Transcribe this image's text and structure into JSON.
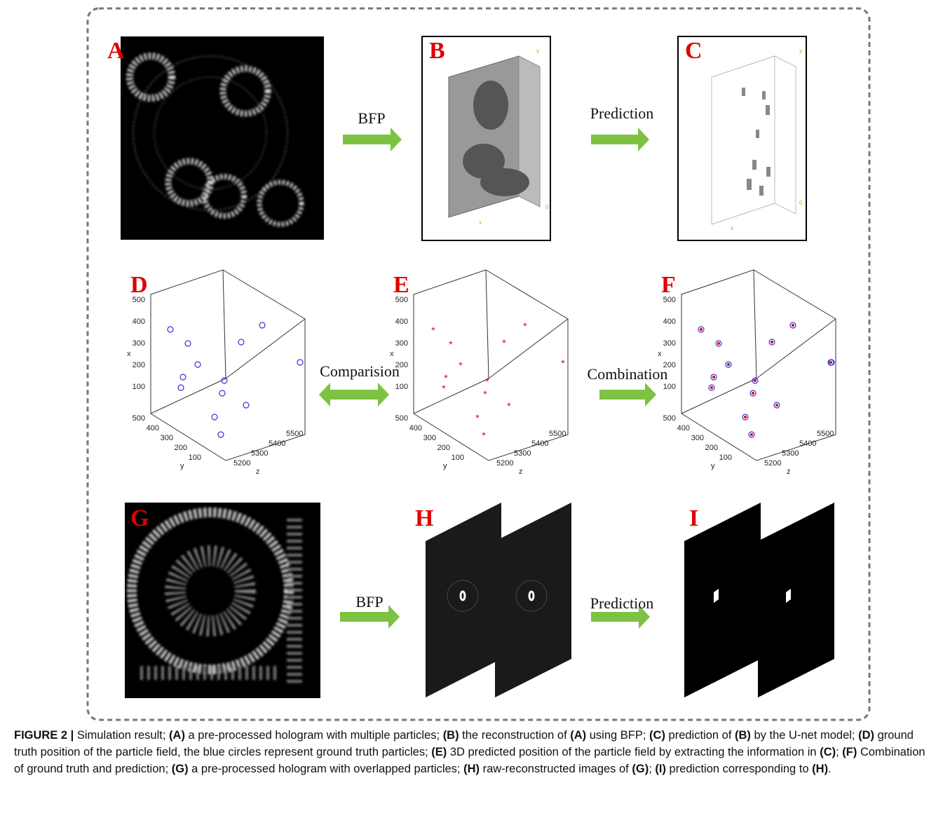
{
  "panels": [
    "A",
    "B",
    "C",
    "D",
    "E",
    "F",
    "G",
    "H",
    "I"
  ],
  "arrows": [
    "BFP",
    "Prediction",
    "Comparision",
    "Combination",
    "BFP",
    "Prediction"
  ],
  "volume_axes": {
    "vertical": "y",
    "depth": "x",
    "origin": "0"
  },
  "plot_axes": {
    "x_label": "x",
    "y_label": "y",
    "z_label": "z",
    "x_ticks": [
      "500",
      "400",
      "300",
      "200",
      "100"
    ],
    "y_ticks": [
      "500",
      "400",
      "300",
      "200",
      "100"
    ],
    "z_ticks": [
      "5200",
      "5300",
      "5400",
      "5500"
    ]
  },
  "caption": [
    {
      "text": "FIGURE 2 |",
      "bold": true
    },
    {
      "text": " Simulation result; ",
      "bold": false
    },
    {
      "text": "(A)",
      "bold": true
    },
    {
      "text": " a pre-processed hologram with multiple particles; ",
      "bold": false
    },
    {
      "text": "(B)",
      "bold": true
    },
    {
      "text": " the reconstruction of ",
      "bold": false
    },
    {
      "text": "(A)",
      "bold": true
    },
    {
      "text": " using BFP; ",
      "bold": false
    },
    {
      "text": "(C)",
      "bold": true
    },
    {
      "text": " prediction of ",
      "bold": false
    },
    {
      "text": "(B)",
      "bold": true
    },
    {
      "text": " by the U-net model; ",
      "bold": false
    },
    {
      "text": "(D)",
      "bold": true
    },
    {
      "text": " ground truth position of the particle field, the blue circles represent ground truth particles; ",
      "bold": false
    },
    {
      "text": "(E)",
      "bold": true
    },
    {
      "text": " 3D predicted position of the particle field by extracting the information in ",
      "bold": false
    },
    {
      "text": "(C)",
      "bold": true
    },
    {
      "text": "; ",
      "bold": false
    },
    {
      "text": "(F)",
      "bold": true
    },
    {
      "text": " Combination of ground truth and prediction; ",
      "bold": false
    },
    {
      "text": "(G)",
      "bold": true
    },
    {
      "text": " a pre-processed hologram with overlapped particles; ",
      "bold": false
    },
    {
      "text": "(H)",
      "bold": true
    },
    {
      "text": " raw-reconstructed images of ",
      "bold": false
    },
    {
      "text": "(G)",
      "bold": true
    },
    {
      "text": "; ",
      "bold": false
    },
    {
      "text": "(I)",
      "bold": true
    },
    {
      "text": " prediction corresponding to ",
      "bold": false
    },
    {
      "text": "(H)",
      "bold": true
    },
    {
      "text": ".",
      "bold": false
    }
  ]
}
